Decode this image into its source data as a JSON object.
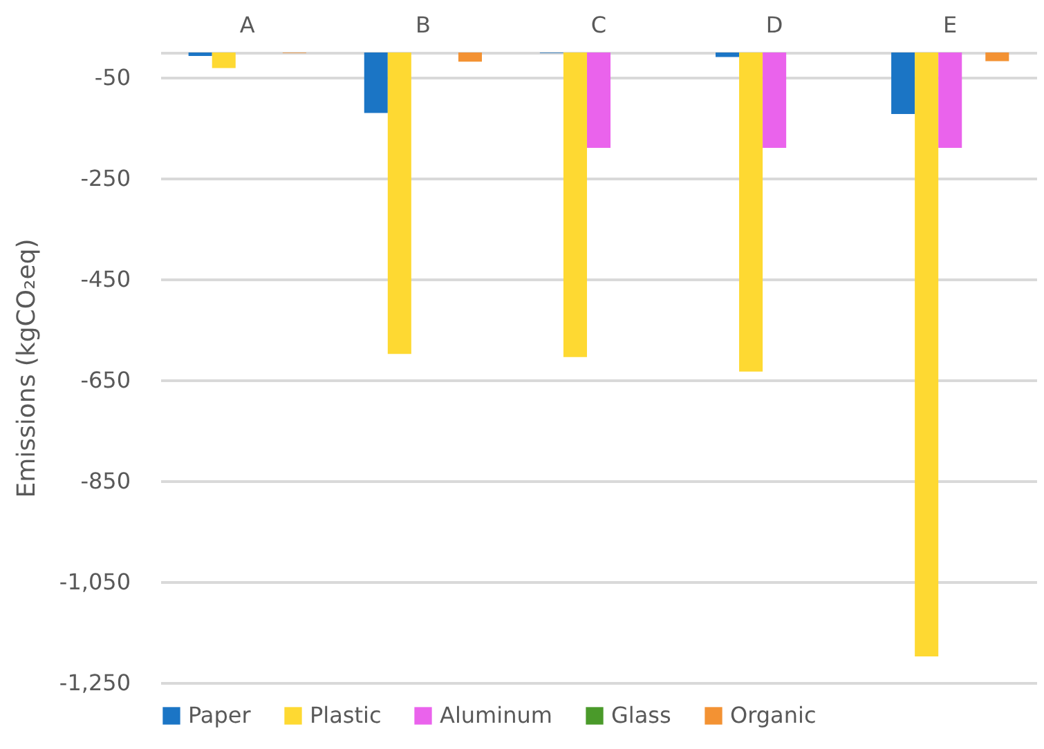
{
  "chart_data": {
    "type": "bar",
    "ylabel": "Emissions (kgCO₂eq)",
    "categories": [
      "A",
      "B",
      "C",
      "D",
      "E"
    ],
    "series": [
      {
        "name": "Paper",
        "color": "#1b75c5",
        "values": [
          -7,
          -120,
          -1,
          -9,
          -122
        ]
      },
      {
        "name": "Plastic",
        "color": "#fed932",
        "values": [
          -31,
          -598,
          -604,
          -633,
          -1198
        ]
      },
      {
        "name": "Aluminum",
        "color": "#ea63ec",
        "values": [
          0,
          0,
          -189,
          -189,
          -189
        ]
      },
      {
        "name": "Glass",
        "color": "#4a9a2a",
        "values": [
          0,
          0,
          0,
          0,
          0
        ]
      },
      {
        "name": "Organic",
        "color": "#f39233",
        "values": [
          -1,
          -18,
          0,
          0,
          -17
        ]
      }
    ],
    "ylim": [
      -1250,
      0
    ],
    "yticks": [
      {
        "value": -1250,
        "label": "-1,250"
      },
      {
        "value": -1050,
        "label": "-1,050"
      },
      -850,
      -650,
      -450,
      -250,
      -50
    ],
    "grid": true,
    "legend": "bottom"
  }
}
